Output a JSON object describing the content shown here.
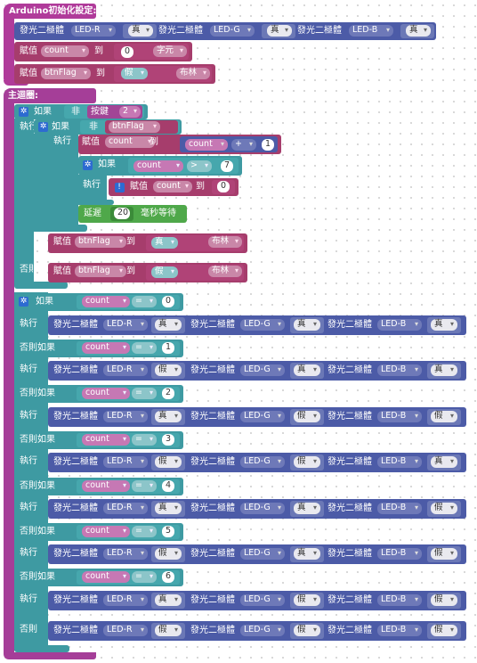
{
  "setup": {
    "title": "Arduino初始化設定:"
  },
  "loop": {
    "title": "主迴圈:"
  },
  "labels": {
    "led": "發光二極體",
    "assign": "賦值",
    "to": "到",
    "as": "as",
    "if": "如果",
    "not": "非",
    "do": "執行",
    "else": "否則",
    "elseif": "否則如果",
    "delay": "延遲",
    "ms_wait": "毫秒等待",
    "button": "按鍵"
  },
  "values": {
    "true": "真",
    "false": "假",
    "char_type": "字元",
    "bool_type": "布林",
    "led_r": "LED-R",
    "led_g": "LED-G",
    "led_b": "LED-B",
    "count": "count",
    "btnflag": "btnFlag",
    "plus": "+",
    "gt": ">",
    "eq": "=",
    "n0": "0",
    "n1": "1",
    "n2": "2",
    "n3": "3",
    "n4": "4",
    "n5": "5",
    "n6": "6",
    "n7": "7",
    "n20": "20"
  },
  "colors": {
    "hat": "#b03b9a",
    "control": "#3e9aa2",
    "led_block": "#4c5ba7",
    "variable": "#a63d6c",
    "delay": "#4fa84a",
    "gear": "#2d6bd1"
  },
  "led_rows": [
    {
      "r": "真",
      "g": "真",
      "b": "真"
    },
    {
      "r": "真",
      "g": "真",
      "b": "真"
    },
    {
      "r": "假",
      "g": "真",
      "b": "真"
    },
    {
      "r": "真",
      "g": "假",
      "b": "假"
    },
    {
      "r": "假",
      "g": "假",
      "b": "真"
    },
    {
      "r": "真",
      "g": "真",
      "b": "假"
    },
    {
      "r": "假",
      "g": "真",
      "b": "假"
    },
    {
      "r": "真",
      "g": "假",
      "b": "假"
    },
    {
      "r": "假",
      "g": "假",
      "b": "假"
    }
  ],
  "cases": [
    "0",
    "1",
    "2",
    "3",
    "4",
    "5",
    "6"
  ]
}
